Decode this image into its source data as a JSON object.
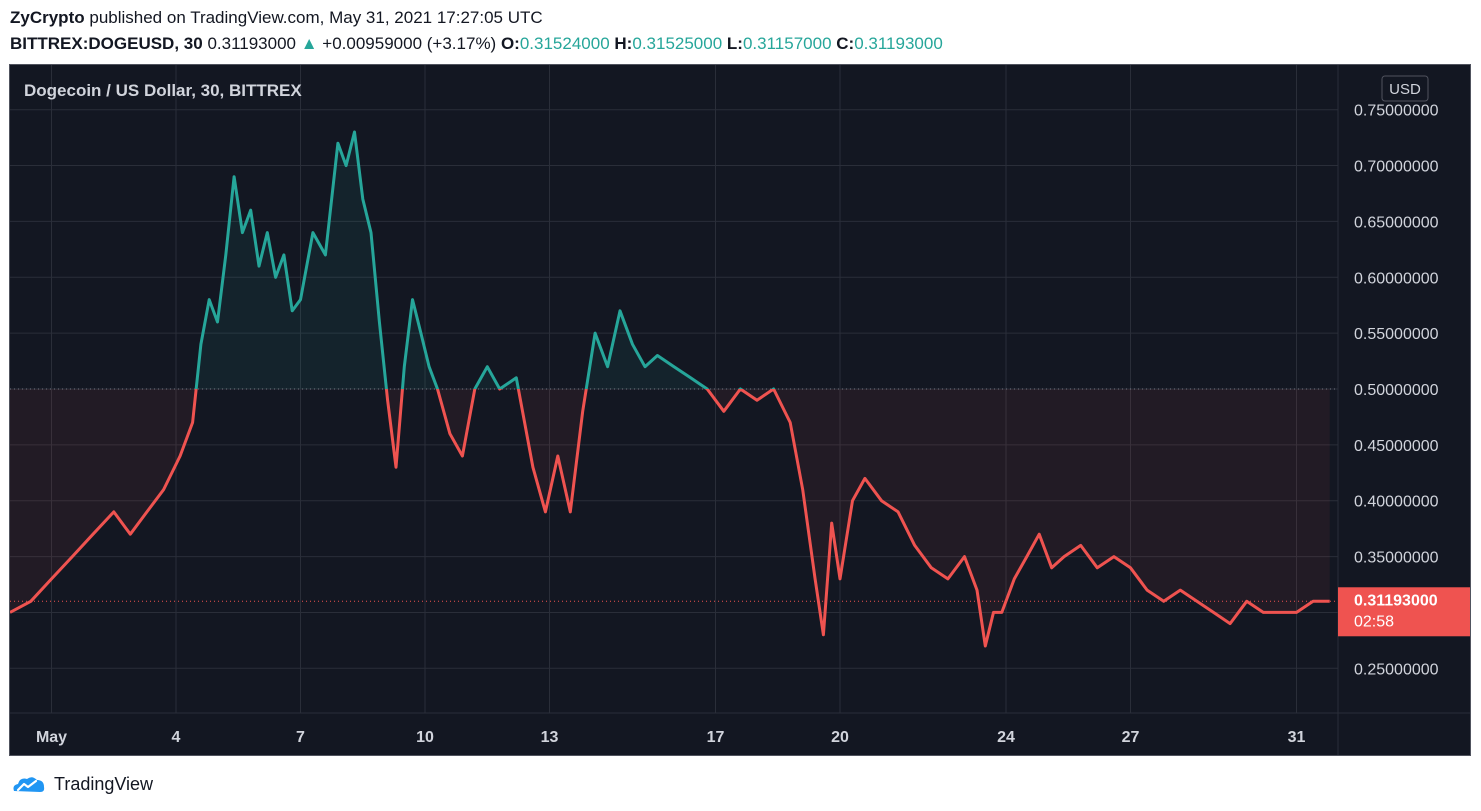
{
  "header": {
    "publisher": "ZyCrypto",
    "published_text": "published on TradingView.com, May 31, 2021 17:27:05 UTC",
    "symbol": "BITTREX:DOGEUSD, 30",
    "last": "0.31193000",
    "change_arrow": "▲",
    "change": "+0.00959000 (+3.17%)",
    "o_label": "O:",
    "o_value": "0.31524000",
    "h_label": "H:",
    "h_value": "0.31525000",
    "l_label": "L:",
    "l_value": "0.31157000",
    "c_label": "C:",
    "c_value": "0.31193000"
  },
  "footer": {
    "brand": "TradingView",
    "logo_icon": "tradingview-logo-icon"
  },
  "colors": {
    "up": "#26a69a",
    "down": "#ef5350",
    "background": "#131722",
    "grid": "#2a2e39",
    "axis_text": "#d1d4dc"
  },
  "chart_data": {
    "type": "line",
    "title": "Dogecoin / US Dollar, 30, BITTREX",
    "currency_badge": "USD",
    "baseline": 0.5,
    "last_price_label": "0.31193000",
    "countdown": "02:58",
    "y_ticks": [
      "0.75000000",
      "0.70000000",
      "0.65000000",
      "0.60000000",
      "0.55000000",
      "0.50000000",
      "0.45000000",
      "0.40000000",
      "0.35000000",
      "0.30000000",
      "0.25000000"
    ],
    "ylim": [
      0.21,
      0.79
    ],
    "x_ticks": [
      "May",
      "4",
      "7",
      "10",
      "13",
      "17",
      "20",
      "24",
      "27",
      "31"
    ],
    "xlim": [
      0,
      32
    ],
    "x_tick_values": [
      1,
      4,
      7,
      10,
      13,
      17,
      20,
      24,
      27,
      31
    ],
    "series": [
      {
        "x": [
          0,
          0.5,
          1,
          1.5,
          2,
          2.5,
          2.9,
          3.3,
          3.7,
          4.1,
          4.4,
          4.6,
          4.8,
          5.0,
          5.2,
          5.4,
          5.6,
          5.8,
          6.0,
          6.2,
          6.4,
          6.6,
          6.8,
          7.0,
          7.3,
          7.6,
          7.9,
          8.1,
          8.3,
          8.5,
          8.7,
          8.9,
          9.1,
          9.3,
          9.5,
          9.7,
          9.9,
          10.1,
          10.3,
          10.6,
          10.9,
          11.2,
          11.5,
          11.8,
          12.2,
          12.6,
          12.9,
          13.2,
          13.5,
          13.8,
          14.1,
          14.4,
          14.7,
          15.0,
          15.3,
          15.6,
          16.0,
          16.4,
          16.8,
          17.2,
          17.6,
          18.0,
          18.4,
          18.8,
          19.1,
          19.4,
          19.6,
          19.8,
          20.0,
          20.3,
          20.6,
          21.0,
          21.4,
          21.8,
          22.2,
          22.6,
          23.0,
          23.3,
          23.5,
          23.7,
          23.9,
          24.2,
          24.5,
          24.8,
          25.1,
          25.4,
          25.8,
          26.2,
          26.6,
          27.0,
          27.4,
          27.8,
          28.2,
          28.6,
          29.0,
          29.4,
          29.8,
          30.2,
          30.6,
          31.0,
          31.4,
          31.8
        ],
        "y": [
          0.3,
          0.31,
          0.33,
          0.35,
          0.37,
          0.39,
          0.37,
          0.39,
          0.41,
          0.44,
          0.47,
          0.54,
          0.58,
          0.56,
          0.62,
          0.69,
          0.64,
          0.66,
          0.61,
          0.64,
          0.6,
          0.62,
          0.57,
          0.58,
          0.64,
          0.62,
          0.72,
          0.7,
          0.73,
          0.67,
          0.64,
          0.56,
          0.49,
          0.43,
          0.52,
          0.58,
          0.55,
          0.52,
          0.5,
          0.46,
          0.44,
          0.5,
          0.52,
          0.5,
          0.51,
          0.43,
          0.39,
          0.44,
          0.39,
          0.48,
          0.55,
          0.52,
          0.57,
          0.54,
          0.52,
          0.53,
          0.52,
          0.51,
          0.5,
          0.48,
          0.5,
          0.49,
          0.5,
          0.47,
          0.41,
          0.33,
          0.28,
          0.38,
          0.33,
          0.4,
          0.42,
          0.4,
          0.39,
          0.36,
          0.34,
          0.33,
          0.35,
          0.32,
          0.27,
          0.3,
          0.3,
          0.33,
          0.35,
          0.37,
          0.34,
          0.35,
          0.36,
          0.34,
          0.35,
          0.34,
          0.32,
          0.31,
          0.32,
          0.31,
          0.3,
          0.29,
          0.31,
          0.3,
          0.3,
          0.3,
          0.31,
          0.31
        ]
      }
    ]
  }
}
